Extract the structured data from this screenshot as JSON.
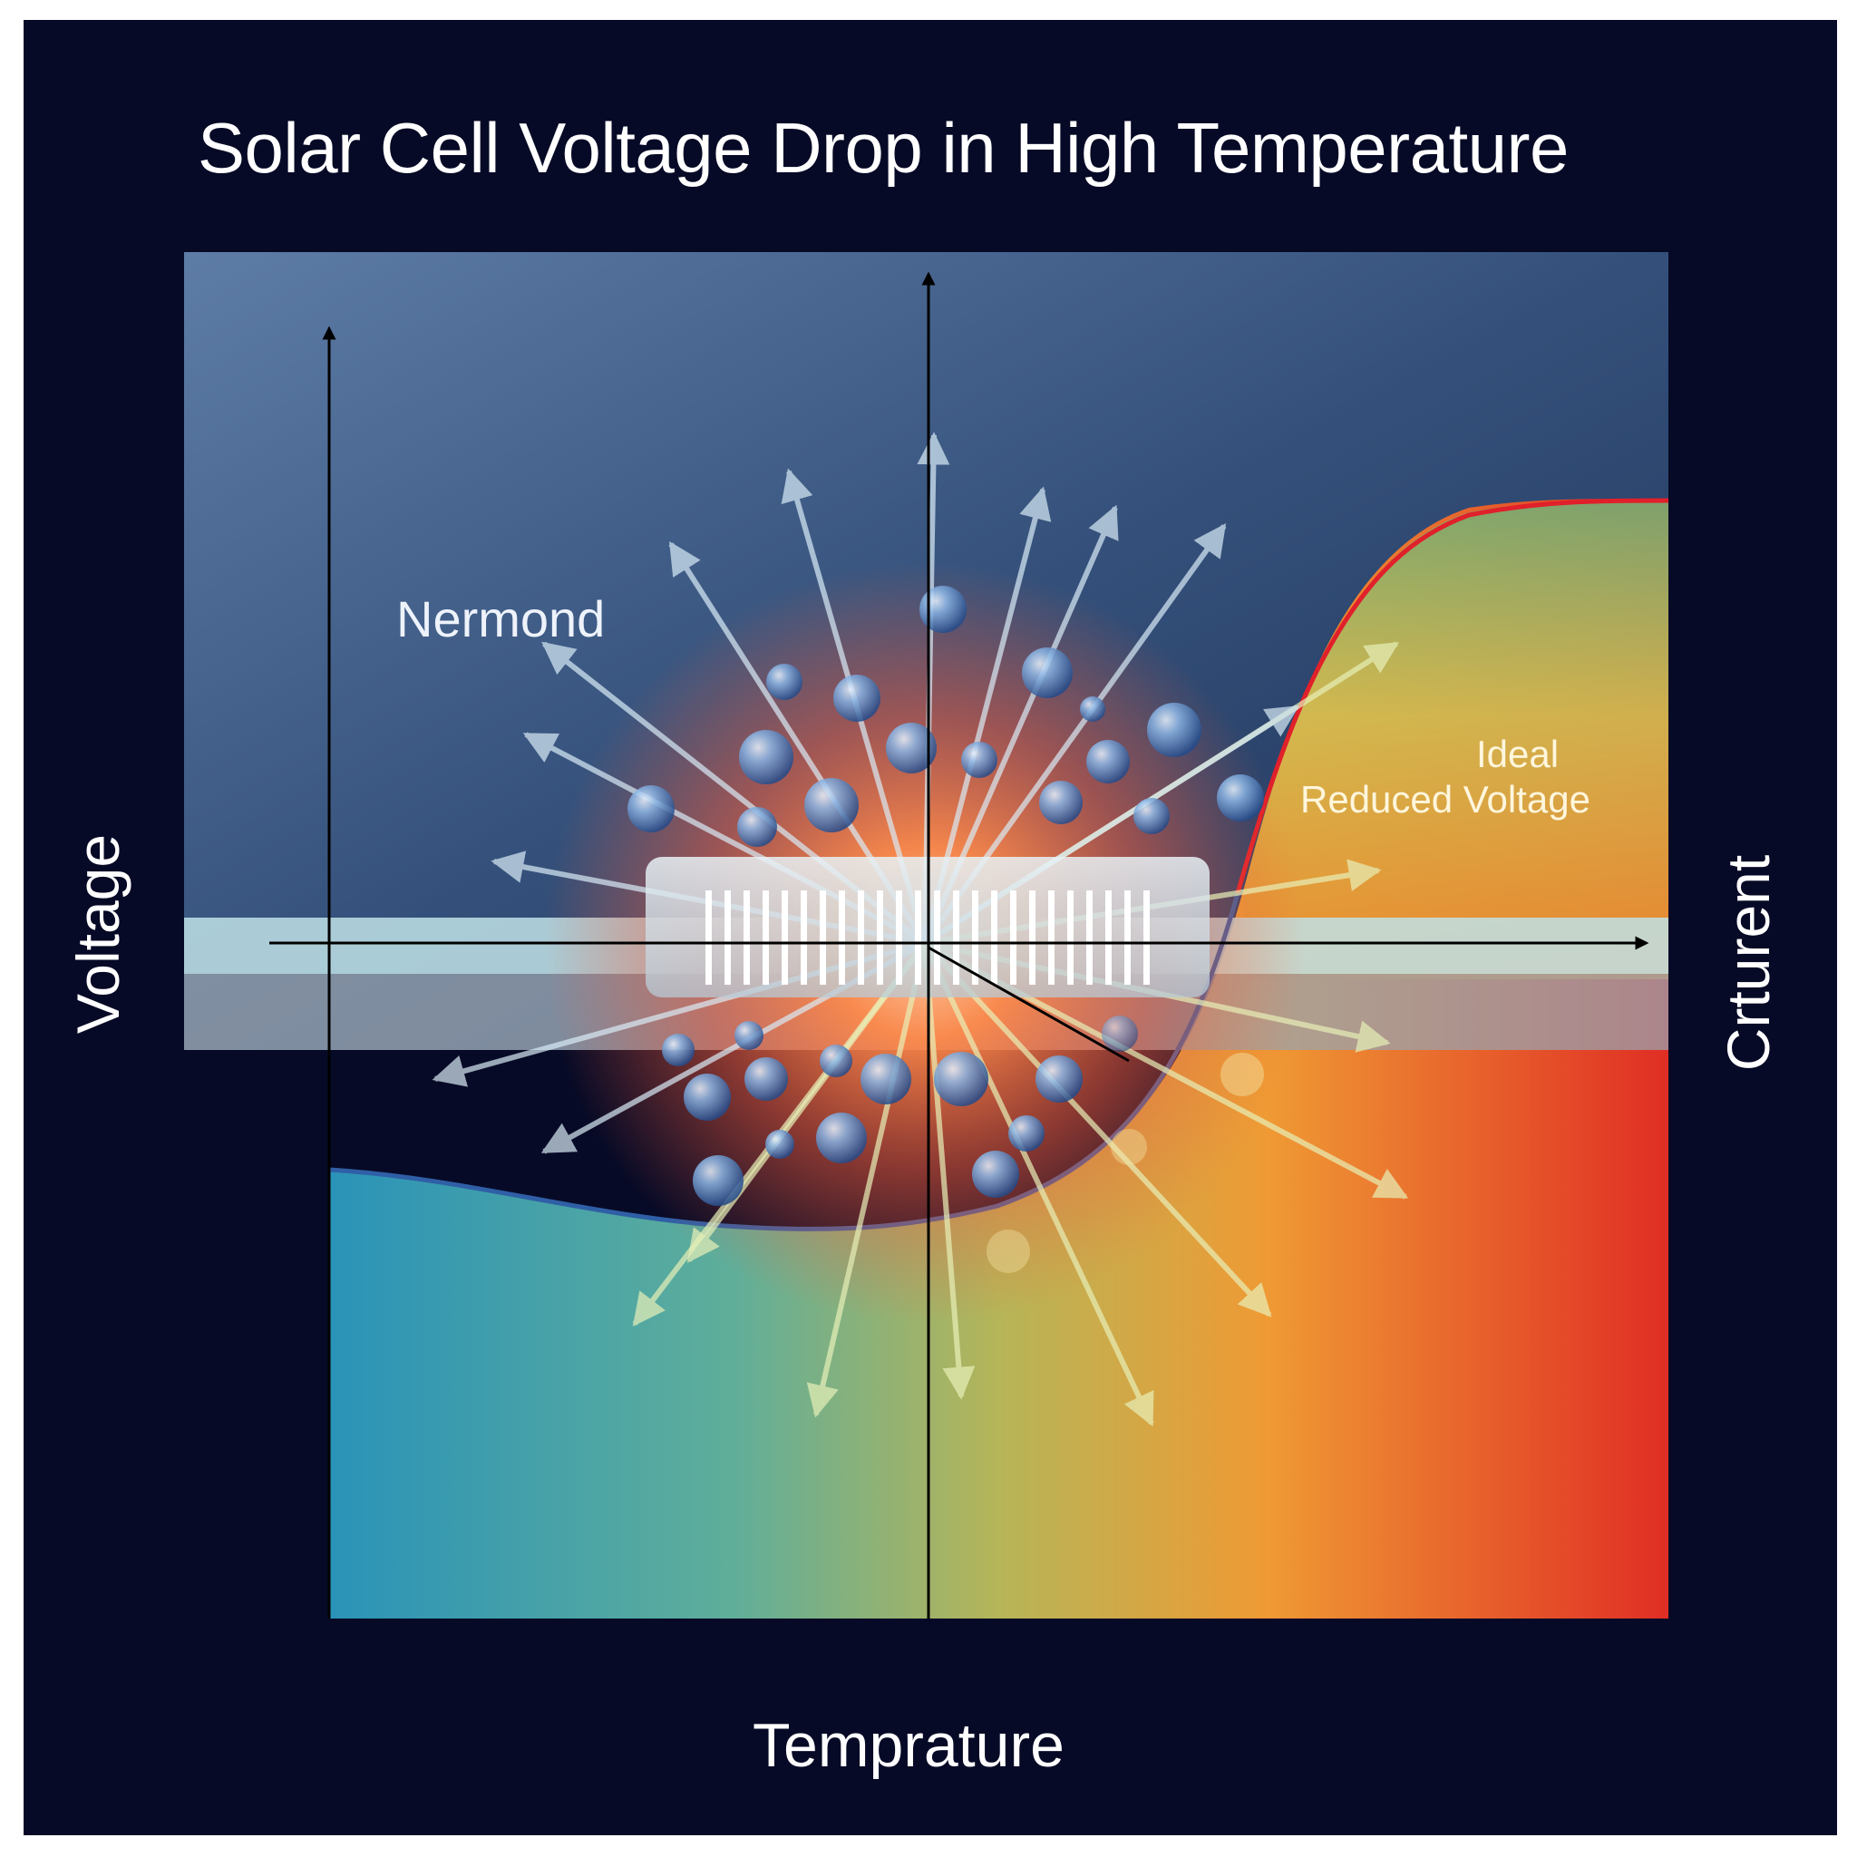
{
  "title": "Solar Cell Voltage Drop in High Temperature",
  "labels": {
    "burst": "Nermond",
    "curve_line1": "Ideal",
    "curve_line2": "Reduced Voltage",
    "x_axis": "Temprature",
    "left_axis": "Voltage",
    "right_axis": "Crturent"
  },
  "colors": {
    "frame": "#070a26",
    "panel_top": "#56759e",
    "panel_bottom": "#22365a",
    "gradient_cool": "#2a93b8",
    "gradient_mid": "#8ab55e",
    "gradient_warm": "#ef9a34",
    "gradient_hot": "#e02e24",
    "curve_red": "#e0202a",
    "curve_blue": "#2f5fa6",
    "burst_core": "#ff7a3c"
  },
  "icons": {
    "burst_arrows": "outward-arrow-icon",
    "particles": "sphere-particle-icon",
    "cell_strip": "solar-cell-strip-icon"
  }
}
